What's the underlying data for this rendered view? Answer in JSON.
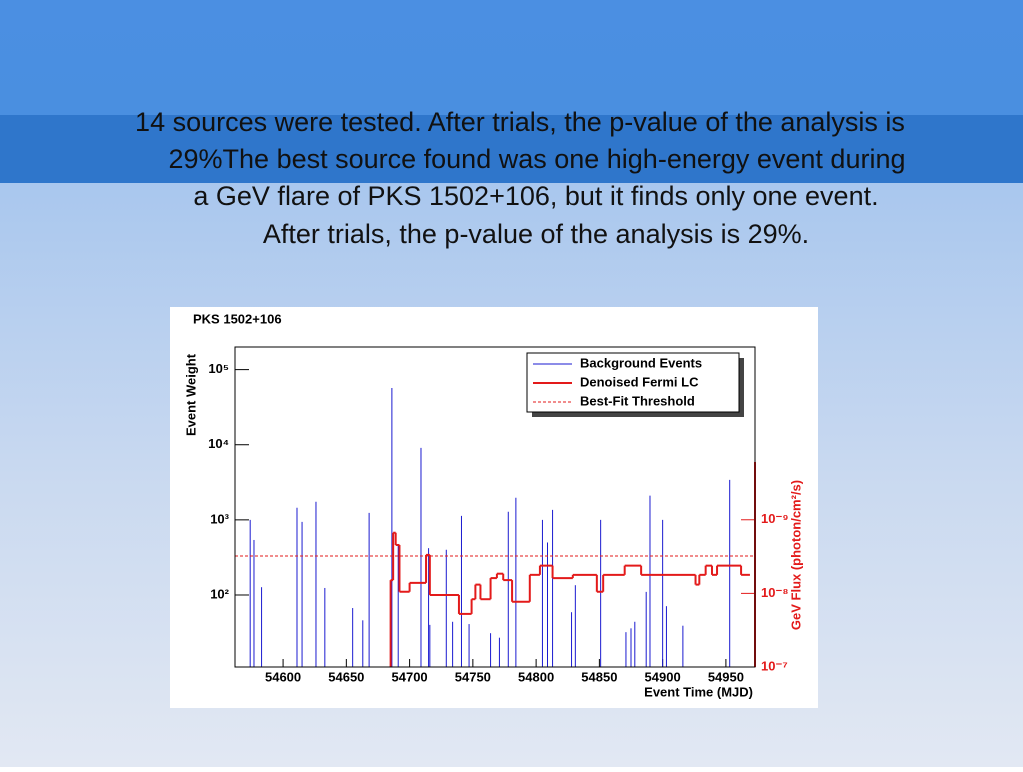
{
  "slide": {
    "text_lines": [
      "14 sources were tested. After trials, the p-value of the analysis is",
      "29%The best source found was one high-energy event during",
      "a GeV flare of PKS 1502+106, but it finds only one event.",
      "After trials, the p-value of the analysis is 29%."
    ]
  },
  "chart_data": {
    "type": "spike-step",
    "title": "PKS 1502+106",
    "x_label": "Event Time (MJD)",
    "y_label": "Event Weight",
    "y2_label": "GeV Flux (photon/cm²/s)",
    "xlim": [
      54562,
      54973
    ],
    "xticks": [
      54600,
      54650,
      54700,
      54750,
      54800,
      54850,
      54900,
      54950
    ],
    "ylim": [
      11,
      200000
    ],
    "log_y": true,
    "yticks": [
      {
        "value": 100,
        "label": "10²"
      },
      {
        "value": 1000,
        "label": "10³"
      },
      {
        "value": 10000,
        "label": "10⁴"
      },
      {
        "value": 100000,
        "label": "10⁵"
      }
    ],
    "y2lim": [
      1e-07,
      4.5e-12
    ],
    "log_y2": true,
    "y2ticks": [
      {
        "value": 1e-09,
        "label": "10⁻⁹"
      },
      {
        "value": 1e-08,
        "label": "10⁻⁸"
      },
      {
        "value": 1e-07,
        "label": "10⁻⁷"
      }
    ],
    "legend": "top-right",
    "series": [
      {
        "name": "Background Events",
        "color": "#1a1ad0",
        "x": [
          54574,
          54577,
          54583,
          54611,
          54615,
          54626,
          54633,
          54655,
          54663,
          54668,
          54686,
          54691,
          54709,
          54715,
          54716,
          54729,
          54734,
          54741,
          54747,
          54764,
          54771,
          54778,
          54784,
          54805,
          54809,
          54813,
          54828,
          54831,
          54851,
          54871,
          54875,
          54878,
          54887,
          54890,
          54900,
          54903,
          54916,
          54953
        ],
        "values": [
          1000,
          540,
          127,
          1450,
          940,
          1740,
          124,
          67,
          46,
          1240,
          57000,
          460,
          9100,
          420,
          40,
          400,
          44,
          1130,
          41,
          31,
          27,
          1280,
          1970,
          1000,
          500,
          1360,
          59,
          135,
          1000,
          32,
          36,
          44,
          110,
          2100,
          1000,
          71,
          39,
          3400
        ]
      },
      {
        "name": "Denoised Fermi LC",
        "color": "#e31a1a",
        "axis": "y2",
        "x": [
          54685,
          54687,
          54689,
          54692,
          54700,
          54713,
          54716,
          54739,
          54749,
          54752,
          54756,
          54764,
          54769,
          54774,
          54781,
          54795,
          54803,
          54813,
          54829,
          54848,
          54853,
          54870,
          54883,
          54926,
          54929,
          54934,
          54939,
          54943,
          54962,
          54969
        ],
        "values": [
          6.6e-09,
          1.5e-09,
          2.2e-09,
          9.5e-09,
          7.2e-09,
          3e-09,
          1.05e-08,
          1.9e-08,
          1.2e-08,
          7.6e-09,
          1.2e-08,
          6.2e-09,
          5.4e-09,
          6.6e-09,
          1.3e-08,
          5.6e-09,
          4.2e-09,
          6.2e-09,
          5.6e-09,
          9.5e-09,
          5.6e-09,
          4.2e-09,
          5.6e-09,
          7.6e-09,
          5.6e-09,
          4.2e-09,
          5.6e-09,
          4.2e-09,
          5.6e-09,
          5.6e-09
        ]
      },
      {
        "name": "Best-Fit Threshold",
        "color": "#e31a1a",
        "dashed": true,
        "values": [
          330
        ]
      }
    ]
  }
}
